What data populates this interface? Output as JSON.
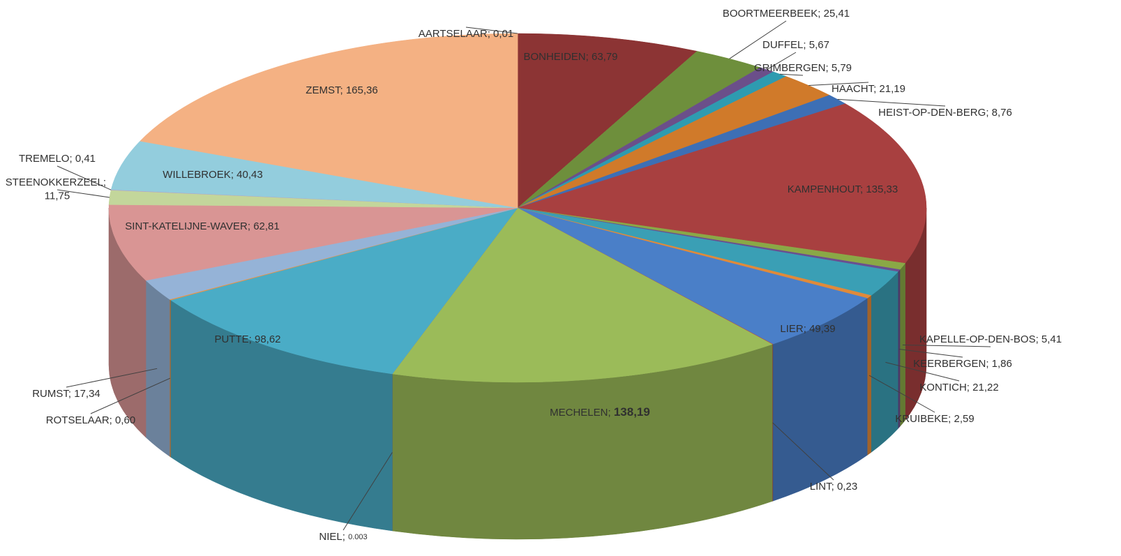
{
  "chart_data": {
    "type": "pie3d",
    "categories": [
      "BONHEIDEN",
      "BOORTMEERBEEK",
      "DUFFEL",
      "GRIMBERGEN",
      "HAACHT",
      "HEIST-OP-DEN-BERG",
      "KAMPENHOUT",
      "KAPELLE-OP-DEN-BOS",
      "KEERBERGEN",
      "KONTICH",
      "KRUIBEKE",
      "LIER",
      "LINT",
      "MECHELEN",
      "NIEL",
      "PUTTE",
      "ROTSELAAR",
      "RUMST",
      "SINT-KATELIJNE-WAVER",
      "STEENOKKERZEEL",
      "TREMELO",
      "WILLEBROEK",
      "ZEMST",
      "AARTSELAAR"
    ],
    "values": [
      63.79,
      25.41,
      5.67,
      5.79,
      21.19,
      8.76,
      135.33,
      5.41,
      1.86,
      21.22,
      2.59,
      49.39,
      0.23,
      138.19,
      0.003,
      98.62,
      0.6,
      17.34,
      62.81,
      11.75,
      0.41,
      40.43,
      165.36,
      0.01
    ],
    "value_labels": [
      "63,79",
      "25,41",
      "5,67",
      "5,79",
      "21,19",
      "8,76",
      "135,33",
      "5,41",
      "1,86",
      "21,22",
      "2,59",
      "49,39",
      "0,23",
      "138,19",
      "0.003",
      "98,62",
      "0,60",
      "17,34",
      "62,81",
      "11,75",
      "0,41",
      "40,43",
      "165,36",
      "0,01"
    ],
    "label_separator": "; ",
    "colors": [
      "#8c3434",
      "#6e8f3c",
      "#6b4f8a",
      "#2e9bb0",
      "#d07a2a",
      "#3d6fb5",
      "#a84040",
      "#8aa846",
      "#6a4f90",
      "#3a9fb5",
      "#e08a3a",
      "#4a7fc8",
      "#b84040",
      "#9bbb59",
      "#7a5ea8",
      "#4aacc6",
      "#f0913c",
      "#95b3d7",
      "#d99594",
      "#c3d69b",
      "#b3a2c7",
      "#93cddd",
      "#f4b183",
      "#f4b183"
    ]
  }
}
